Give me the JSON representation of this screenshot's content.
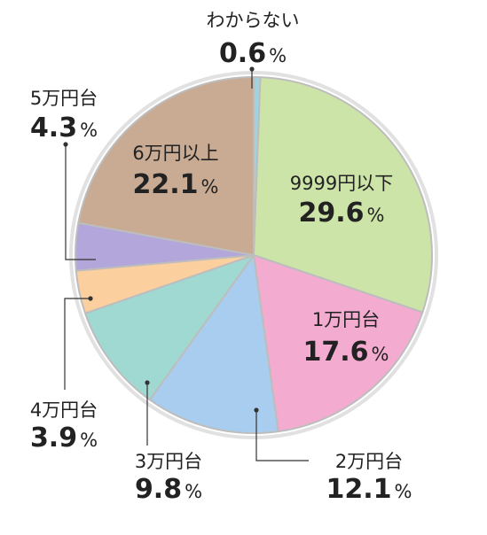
{
  "chart_data": {
    "type": "pie",
    "unit": "%",
    "slices": [
      {
        "label": "わからない",
        "value": 0.6,
        "color": "#9fd3e0"
      },
      {
        "label": "9999円以下",
        "value": 29.6,
        "color": "#cde4a8"
      },
      {
        "label": "1万円台",
        "value": 17.6,
        "color": "#f3abd0"
      },
      {
        "label": "2万円台",
        "value": 12.1,
        "color": "#a9cdef"
      },
      {
        "label": "3万円台",
        "value": 9.8,
        "color": "#9fd9d2"
      },
      {
        "label": "4万円台",
        "value": 3.9,
        "color": "#fbcf9e"
      },
      {
        "label": "5万円台",
        "value": 4.3,
        "color": "#b3a6da"
      },
      {
        "label": "6万円以上",
        "value": 22.1,
        "color": "#c9ab94"
      }
    ]
  }
}
